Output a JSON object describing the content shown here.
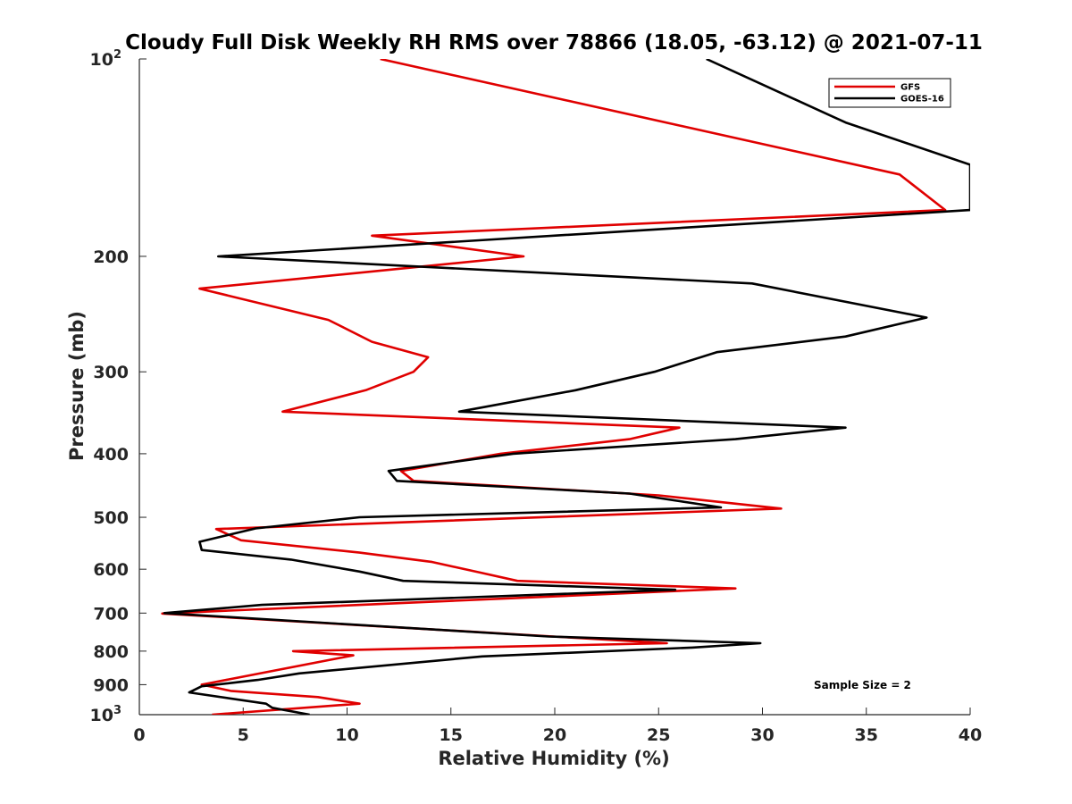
{
  "chart_data": {
    "type": "line",
    "title": "Cloudy Full Disk Weekly RH RMS over 78866 (18.05, -63.12) @ 2021-07-11",
    "xlabel": "Relative Humidity (%)",
    "ylabel": "Pressure (mb)",
    "xlim": [
      0,
      40
    ],
    "ylim": [
      100,
      1000
    ],
    "yscale": "log",
    "y_reversed": true,
    "grid": false,
    "legend_position": "top-right",
    "xticks": [
      {
        "value": 0,
        "label": "0"
      },
      {
        "value": 5,
        "label": "5"
      },
      {
        "value": 10,
        "label": "10"
      },
      {
        "value": 15,
        "label": "15"
      },
      {
        "value": 20,
        "label": "20"
      },
      {
        "value": 25,
        "label": "25"
      },
      {
        "value": 30,
        "label": "30"
      },
      {
        "value": 35,
        "label": "35"
      },
      {
        "value": 40,
        "label": "40"
      }
    ],
    "yticks": [
      {
        "value": 100,
        "label": "10",
        "exp": "2"
      },
      {
        "value": 200,
        "label": "200"
      },
      {
        "value": 300,
        "label": "300"
      },
      {
        "value": 400,
        "label": "400"
      },
      {
        "value": 500,
        "label": "500"
      },
      {
        "value": 600,
        "label": "600"
      },
      {
        "value": 700,
        "label": "700"
      },
      {
        "value": 800,
        "label": "800"
      },
      {
        "value": 900,
        "label": "900"
      },
      {
        "value": 1000,
        "label": "10",
        "exp": "3"
      }
    ],
    "series": [
      {
        "name": "GFS",
        "color": "#e00000",
        "points": [
          [
            11.6,
            100
          ],
          [
            36.6,
            150
          ],
          [
            38.8,
            170
          ],
          [
            11.2,
            186
          ],
          [
            18.5,
            200
          ],
          [
            2.9,
            224
          ],
          [
            9.1,
            250
          ],
          [
            11.2,
            270
          ],
          [
            13.9,
            285
          ],
          [
            13.2,
            300
          ],
          [
            10.9,
            320
          ],
          [
            6.9,
            345
          ],
          [
            26.0,
            365
          ],
          [
            23.6,
            380
          ],
          [
            17.4,
            400
          ],
          [
            12.6,
            425
          ],
          [
            13.2,
            440
          ],
          [
            25.0,
            463
          ],
          [
            30.9,
            485
          ],
          [
            3.7,
            521
          ],
          [
            4.9,
            542
          ],
          [
            10.6,
            566
          ],
          [
            14.1,
            585
          ],
          [
            16.4,
            607
          ],
          [
            18.2,
            625
          ],
          [
            28.7,
            642
          ],
          [
            1.1,
            701
          ],
          [
            25.4,
            778
          ],
          [
            7.4,
            800
          ],
          [
            10.3,
            812
          ],
          [
            3.0,
            900
          ],
          [
            4.4,
            920
          ],
          [
            8.6,
            940
          ],
          [
            10.6,
            962
          ],
          [
            3.5,
            1000
          ]
        ]
      },
      {
        "name": "GOES-16",
        "color": "#000000",
        "points": [
          [
            27.3,
            100
          ],
          [
            34.0,
            125
          ],
          [
            40.0,
            145
          ],
          [
            40.0,
            170
          ],
          [
            3.8,
            200
          ],
          [
            29.5,
            220
          ],
          [
            37.9,
            248
          ],
          [
            34.0,
            265
          ],
          [
            27.8,
            280
          ],
          [
            24.8,
            300
          ],
          [
            21.0,
            320
          ],
          [
            15.4,
            345
          ],
          [
            34.0,
            365
          ],
          [
            28.7,
            380
          ],
          [
            18.0,
            400
          ],
          [
            12.0,
            425
          ],
          [
            12.4,
            440
          ],
          [
            23.6,
            460
          ],
          [
            28.0,
            483
          ],
          [
            10.6,
            500
          ],
          [
            5.6,
            520
          ],
          [
            2.9,
            545
          ],
          [
            3.0,
            561
          ],
          [
            7.3,
            580
          ],
          [
            10.6,
            605
          ],
          [
            12.7,
            625
          ],
          [
            25.8,
            645
          ],
          [
            5.9,
            680
          ],
          [
            1.2,
            700
          ],
          [
            19.7,
            760
          ],
          [
            29.9,
            778
          ],
          [
            26.6,
            790
          ],
          [
            16.5,
            815
          ],
          [
            7.7,
            865
          ],
          [
            5.7,
            885
          ],
          [
            3.0,
            905
          ],
          [
            2.4,
            925
          ],
          [
            6.1,
            962
          ],
          [
            6.4,
            976
          ],
          [
            8.2,
            1000
          ]
        ]
      }
    ],
    "annotations": [
      {
        "text": "Sample Size = 2",
        "position": "bottom-right"
      }
    ]
  }
}
